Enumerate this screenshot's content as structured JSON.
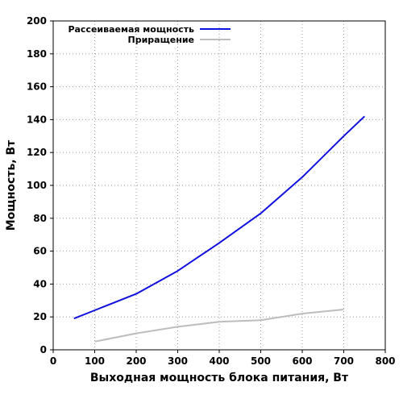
{
  "chart_data": {
    "type": "line",
    "xlabel": "Выходная мощность блока питания, Вт",
    "ylabel": "Мощность, Вт",
    "xlim": [
      0,
      800
    ],
    "ylim": [
      0,
      200
    ],
    "xticks": [
      "0",
      "100",
      "200",
      "300",
      "400",
      "500",
      "600",
      "700",
      "800"
    ],
    "yticks": [
      "0",
      "20",
      "40",
      "60",
      "80",
      "100",
      "120",
      "140",
      "160",
      "180",
      "200"
    ],
    "grid": true,
    "legend_position": "top-left",
    "series": [
      {
        "name": "Рассеиваемая мощность",
        "color": "#1010e0",
        "x": [
          50,
          100,
          200,
          300,
          400,
          500,
          600,
          700,
          750
        ],
        "y": [
          19,
          24,
          34,
          48,
          65,
          83,
          105,
          130,
          142
        ]
      },
      {
        "name": "Приращение",
        "color": "#bdbdbd",
        "x": [
          100,
          200,
          300,
          400,
          500,
          600,
          700
        ],
        "y": [
          5,
          10,
          14,
          17,
          18,
          22,
          24.5
        ]
      }
    ]
  }
}
